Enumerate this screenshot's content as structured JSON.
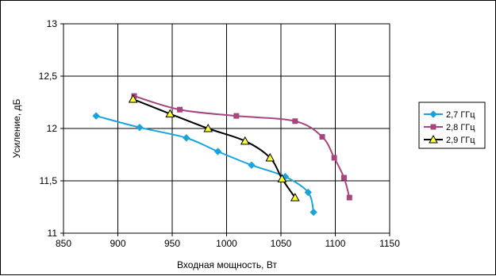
{
  "chart_data": {
    "type": "line",
    "title": "",
    "xlabel": "Входная мощность, Вт",
    "ylabel": "Усиление, дБ",
    "xlim": [
      850,
      1150
    ],
    "ylim": [
      11,
      13
    ],
    "x_ticks": [
      850,
      900,
      950,
      1000,
      1050,
      1100,
      1150
    ],
    "y_ticks": [
      11,
      11.5,
      12,
      12.5,
      13
    ],
    "x_tick_labels": [
      "850",
      "900",
      "950",
      "1000",
      "1050",
      "1100",
      "1150"
    ],
    "y_tick_labels": [
      "11",
      "11,5",
      "12",
      "12,5",
      "13"
    ],
    "grid": true,
    "legend_position": "right",
    "series": [
      {
        "name": "2,7 ГГц",
        "color": "#1aa3dc",
        "marker": "diamond",
        "x": [
          880,
          920,
          963,
          992,
          1023,
          1054,
          1075,
          1080
        ],
        "y": [
          12.12,
          12.01,
          11.91,
          11.78,
          11.65,
          11.54,
          11.39,
          11.2
        ]
      },
      {
        "name": "2,8 ГГц",
        "color": "#a8457f",
        "marker": "square",
        "x": [
          915,
          957,
          1009,
          1063,
          1088,
          1099,
          1108,
          1113
        ],
        "y": [
          12.31,
          12.18,
          12.12,
          12.07,
          11.92,
          11.72,
          11.53,
          11.34
        ]
      },
      {
        "name": "2,9 ГГц",
        "color": "#000000",
        "marker": "triangle",
        "marker_fill": "#ffff33",
        "x": [
          914,
          948,
          983,
          1017,
          1040,
          1051,
          1063
        ],
        "y": [
          12.28,
          12.14,
          12.0,
          11.88,
          11.72,
          11.52,
          11.34
        ]
      }
    ]
  }
}
